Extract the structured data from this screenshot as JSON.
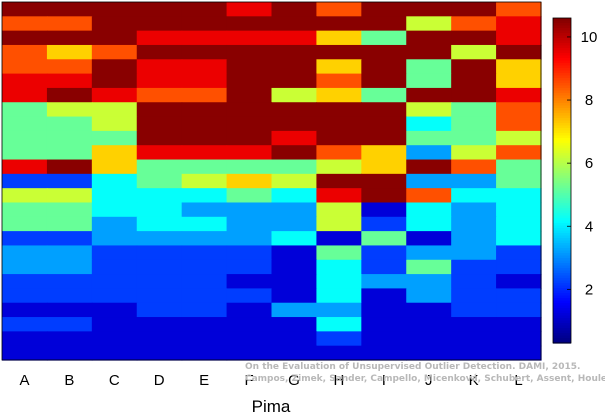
{
  "chart_data": {
    "type": "heatmap",
    "title": "",
    "xlabel": "Pima",
    "ylabel": "",
    "categories": [
      "A",
      "B",
      "C",
      "D",
      "E",
      "F",
      "G",
      "H",
      "I",
      "J",
      "K",
      "L"
    ],
    "colorbar": {
      "min": 0.3,
      "max": 10.6,
      "ticks": [
        2,
        4,
        6,
        8,
        10
      ]
    },
    "colormap": "jet",
    "rows_top_to_bottom": [
      [
        10.5,
        10.5,
        10.5,
        10.5,
        10.5,
        9.5,
        10.5,
        8.5,
        10.5,
        10.5,
        10.5,
        8.5
      ],
      [
        8.5,
        8.5,
        10.5,
        10.5,
        10.5,
        10.5,
        10.5,
        10.5,
        10.5,
        6.2,
        8.5,
        9.5
      ],
      [
        10.5,
        10.5,
        10.5,
        9.5,
        9.5,
        9.5,
        9.5,
        7.2,
        5.2,
        10.5,
        10.5,
        9.5
      ],
      [
        8.5,
        7.2,
        8.5,
        10.5,
        10.5,
        10.5,
        10.5,
        10.5,
        10.5,
        10.5,
        6.2,
        10.5
      ],
      [
        8.5,
        8.5,
        10.5,
        9.5,
        9.5,
        10.5,
        10.5,
        7.2,
        10.5,
        5.2,
        10.5,
        7.2
      ],
      [
        9.5,
        9.5,
        10.5,
        9.5,
        9.5,
        10.5,
        10.5,
        8.5,
        10.5,
        5.2,
        10.5,
        7.2
      ],
      [
        9.5,
        10.5,
        9.5,
        8.5,
        8.5,
        10.5,
        6.2,
        7.2,
        5.2,
        10.5,
        10.5,
        9.5
      ],
      [
        5.2,
        6.2,
        6.2,
        10.5,
        10.5,
        10.5,
        10.5,
        10.5,
        10.5,
        6.2,
        5.2,
        8.5
      ],
      [
        5.2,
        5.2,
        6.2,
        10.5,
        10.5,
        10.5,
        10.5,
        10.5,
        10.5,
        4.2,
        5.2,
        8.5
      ],
      [
        5.2,
        5.2,
        5.2,
        10.5,
        10.5,
        10.5,
        9.5,
        10.5,
        10.5,
        5.2,
        5.2,
        6.2
      ],
      [
        5.2,
        5.2,
        7.2,
        9.5,
        9.5,
        9.5,
        10.5,
        8.5,
        7.2,
        3.2,
        6.2,
        8.5
      ],
      [
        9.5,
        10.5,
        7.2,
        5.2,
        5.2,
        5.2,
        5.2,
        6.2,
        7.2,
        10.5,
        8.5,
        5.2
      ],
      [
        2.2,
        2.2,
        4.2,
        5.2,
        6.2,
        7.2,
        6.2,
        10.5,
        10.5,
        3.2,
        3.2,
        5.2
      ],
      [
        6.2,
        6.2,
        4.2,
        4.2,
        4.2,
        5.2,
        4.2,
        9.5,
        10.5,
        8.5,
        4.2,
        4.2
      ],
      [
        5.2,
        5.2,
        4.2,
        4.2,
        3.2,
        3.2,
        3.2,
        6.2,
        1.2,
        4.2,
        3.2,
        4.2
      ],
      [
        5.2,
        5.2,
        3.2,
        4.2,
        4.2,
        3.2,
        3.2,
        6.2,
        2.2,
        4.2,
        3.2,
        4.2
      ],
      [
        2.2,
        2.2,
        3.2,
        3.2,
        3.2,
        3.2,
        4.2,
        1.2,
        5.2,
        1.2,
        3.2,
        4.2
      ],
      [
        3.2,
        3.2,
        2.2,
        2.2,
        2.2,
        2.2,
        1.2,
        5.2,
        2.2,
        3.2,
        3.2,
        2.2
      ],
      [
        3.2,
        3.2,
        2.2,
        2.2,
        2.2,
        2.2,
        1.2,
        4.2,
        2.2,
        5.2,
        2.2,
        2.2
      ],
      [
        2.2,
        2.2,
        2.2,
        2.2,
        2.2,
        1.2,
        1.2,
        4.2,
        3.2,
        3.2,
        2.2,
        1.2
      ],
      [
        2.2,
        2.2,
        2.2,
        2.2,
        2.2,
        2.2,
        1.2,
        4.2,
        1.2,
        3.2,
        2.2,
        2.2
      ],
      [
        1.2,
        1.2,
        1.2,
        2.2,
        2.2,
        1.2,
        3.2,
        3.2,
        1.2,
        1.2,
        2.2,
        2.2
      ],
      [
        2.2,
        2.2,
        1.2,
        1.2,
        1.2,
        1.2,
        1.2,
        4.2,
        1.2,
        1.2,
        1.2,
        1.2
      ],
      [
        1.2,
        1.2,
        1.2,
        1.2,
        1.2,
        1.2,
        1.2,
        2.2,
        1.2,
        1.2,
        1.2,
        1.2
      ],
      [
        1.2,
        1.2,
        1.2,
        1.2,
        1.2,
        1.2,
        1.2,
        1.2,
        1.2,
        1.2,
        1.2,
        1.2
      ]
    ]
  },
  "watermark": {
    "line1": "On the Evaluation of Unsupervised Outlier Detection. DAMI, 2015.",
    "line2": "Campos, Zimek, Sander, Campello, Micenková, Schubert, Assent, Houle"
  }
}
